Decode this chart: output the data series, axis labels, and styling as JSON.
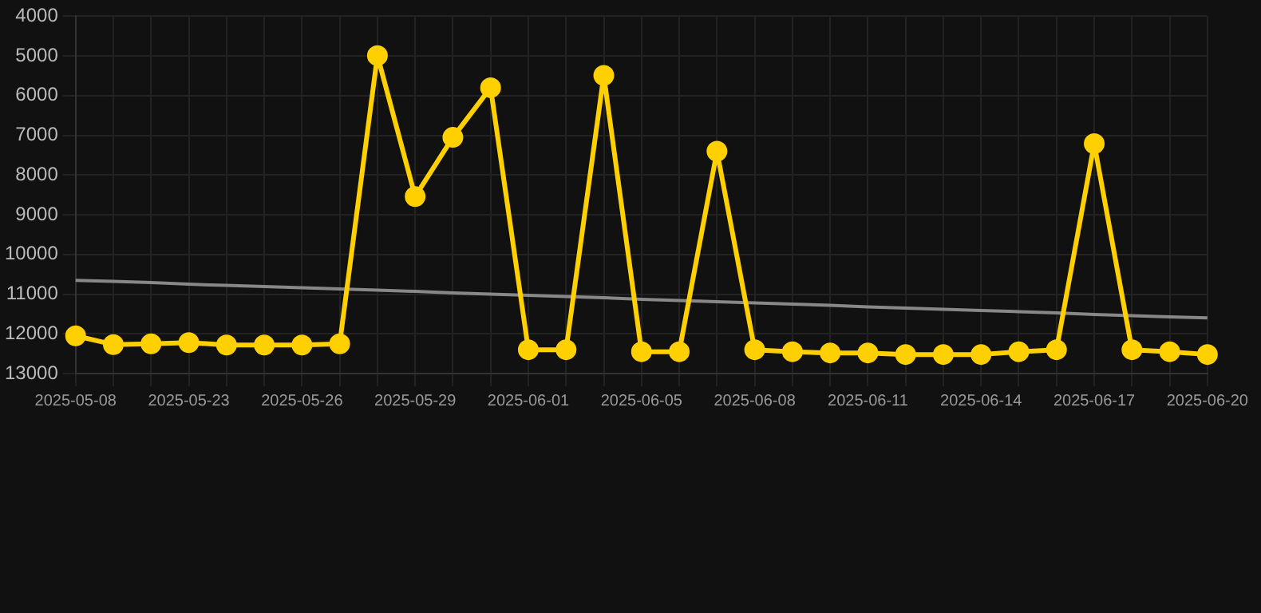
{
  "chart_data": {
    "type": "line",
    "categories": [
      "2025-05-08",
      null,
      null,
      "2025-05-23",
      null,
      null,
      "2025-05-26",
      null,
      null,
      "2025-05-29",
      null,
      null,
      "2025-06-01",
      null,
      null,
      "2025-06-05",
      null,
      null,
      "2025-06-08",
      null,
      null,
      "2025-06-11",
      null,
      null,
      "2025-06-14",
      null,
      null,
      "2025-06-17",
      null,
      null,
      "2025-06-20"
    ],
    "series": [
      {
        "color": "#ffd000",
        "marker": "circle",
        "values": [
          12050,
          12270,
          12250,
          12220,
          12280,
          12280,
          12280,
          12250,
          4990,
          8540,
          7050,
          5800,
          12400,
          12400,
          5490,
          12450,
          12450,
          7400,
          12400,
          12450,
          12480,
          12480,
          12520,
          12520,
          12520,
          12450,
          12400,
          7210,
          12400,
          12450,
          12520
        ]
      },
      {
        "type": "line",
        "color": "#888888",
        "marker": "none",
        "values": [
          10650,
          10680,
          10710,
          10750,
          10780,
          10810,
          10840,
          10870,
          10900,
          10930,
          10970,
          11000,
          11030,
          11060,
          11090,
          11130,
          11160,
          11190,
          11220,
          11250,
          11280,
          11320,
          11350,
          11380,
          11410,
          11440,
          11470,
          11510,
          11540,
          11570,
          11600
        ]
      }
    ],
    "ylim": [
      13000,
      4000
    ],
    "yticks": [
      4000,
      5000,
      6000,
      7000,
      8000,
      9000,
      10000,
      11000,
      12000,
      13000
    ],
    "grid": true
  }
}
